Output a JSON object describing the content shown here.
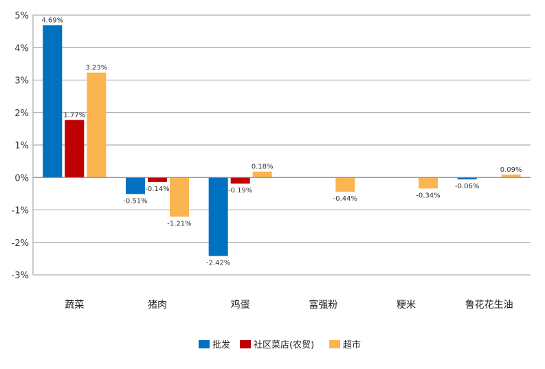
{
  "chart_data": {
    "type": "bar",
    "categories": [
      "蔬菜",
      "猪肉",
      "鸡蛋",
      "富强粉",
      "粳米",
      "鲁花花生油"
    ],
    "series": [
      {
        "name": "批发",
        "color": "#0070c0",
        "values": [
          4.69,
          -0.51,
          -2.42,
          null,
          null,
          -0.06
        ],
        "labels": [
          "4.69%",
          "-0.51%",
          "-2.42%",
          "",
          "",
          "-0.06%"
        ]
      },
      {
        "name": "社区菜店(农贸)",
        "color": "#c00000",
        "values": [
          1.77,
          -0.14,
          -0.19,
          null,
          null,
          null
        ],
        "labels": [
          "1.77%",
          "-0.14%",
          "-0.19%",
          "",
          "",
          ""
        ]
      },
      {
        "name": "超市",
        "color": "#fbb550",
        "values": [
          3.23,
          -1.21,
          0.18,
          -0.44,
          -0.34,
          0.09
        ],
        "labels": [
          "3.23%",
          "-1.21%",
          "0.18%",
          "-0.44%",
          "-0.34%",
          "0.09%"
        ]
      }
    ],
    "ylim": [
      -3,
      5
    ],
    "yticks": [
      5,
      4,
      3,
      2,
      1,
      0,
      -1,
      -2,
      -3
    ],
    "ytick_labels": [
      "5%",
      "4%",
      "3%",
      "2%",
      "1%",
      "0%",
      "-1%",
      "-2%",
      "-3%"
    ],
    "grid": true,
    "legend_position": "bottom",
    "title": "",
    "xlabel": "",
    "ylabel": ""
  }
}
